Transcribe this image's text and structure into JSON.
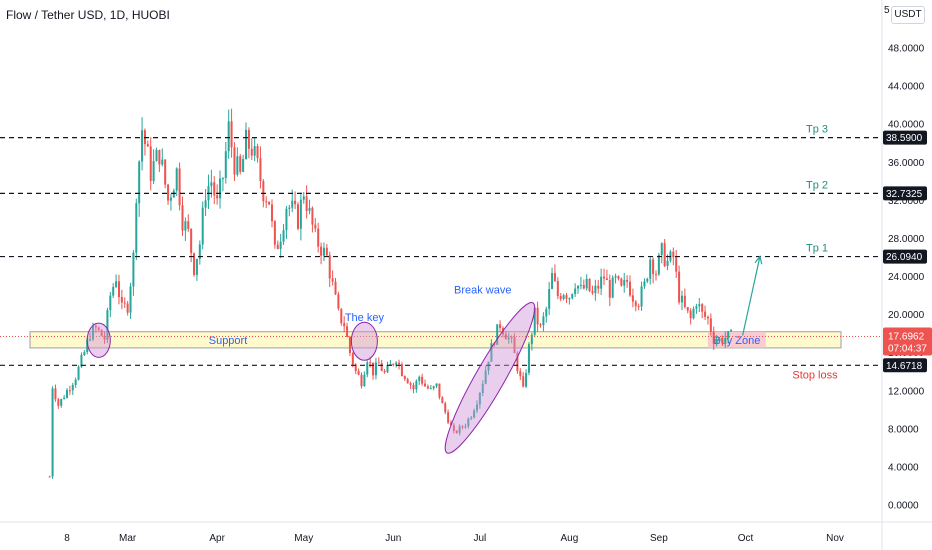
{
  "header": {
    "title": "Flow / Tether USD, 1D, HUOBI",
    "currency": "USDT",
    "top_axis_label": "5"
  },
  "colors": {
    "up": "#26a69a",
    "down": "#ef5350",
    "line": "#131722",
    "tp": "#1e8e7e",
    "stop": "#e53935",
    "blue_text": "#2962ff",
    "support_fill": "#fff9c4",
    "support_stroke": "#9e9e9e",
    "buy_zone": "#f8bbd0",
    "ellipse": "#ce93d8",
    "arrow": "#26a69a",
    "price_tag": "#ef5350"
  },
  "chart_data": {
    "type": "candlestick",
    "ylim": [
      -2,
      52
    ],
    "y_ticks": [
      "0.0000",
      "4.0000",
      "8.0000",
      "12.0000",
      "16.0000",
      "20.0000",
      "24.0000",
      "28.0000",
      "32.0000",
      "36.0000",
      "40.0000",
      "44.0000",
      "48.0000"
    ],
    "x_ticks": [
      {
        "label": "8",
        "day": 0
      },
      {
        "label": "Mar",
        "day": 21
      },
      {
        "label": "Apr",
        "day": 52
      },
      {
        "label": "May",
        "day": 82
      },
      {
        "label": "Jun",
        "day": 113
      },
      {
        "label": "Jul",
        "day": 143
      },
      {
        "label": "Aug",
        "day": 174
      },
      {
        "label": "Sep",
        "day": 205
      },
      {
        "label": "Oct",
        "day": 235
      },
      {
        "label": "Nov",
        "day": 266
      }
    ],
    "levels": [
      {
        "label": "Tp 3",
        "value": 38.59,
        "tag": "38.5900"
      },
      {
        "label": "Tp 2",
        "value": 32.7325,
        "tag": "32.7325"
      },
      {
        "label": "Tp 1",
        "value": 26.094,
        "tag": "26.0940"
      },
      {
        "label": "Stop loss",
        "value": 14.6718,
        "tag": "14.6718"
      }
    ],
    "current_price": {
      "value": 17.6962,
      "label": "17.6962",
      "countdown": "07:04:37"
    },
    "support": {
      "label": "Support",
      "low": 16.5,
      "high": 18.2,
      "day_start": -11,
      "day_end": 256
    },
    "buy_zone": {
      "label": "Buy Zone",
      "low": 16.5,
      "high": 18.2,
      "day_start": 222,
      "day_end": 242
    },
    "annotations": [
      {
        "label": "The key",
        "day": 103,
        "value": 19.3
      },
      {
        "label": "Break wave",
        "day": 144,
        "value": 22.2
      }
    ],
    "arrow": {
      "from_day": 234,
      "from_value": 17.8,
      "to_day": 240,
      "to_value": 26.1
    },
    "circles": [
      {
        "day": 11,
        "value": 17.3,
        "rx_days": 4,
        "ry_value": 1.8
      },
      {
        "day": 103,
        "value": 17.2,
        "rx_days": 4.5,
        "ry_value": 2.0
      }
    ],
    "ellipse": {
      "from_day": 133,
      "from_value": 6.2,
      "to_day": 160,
      "to_value": 20.5,
      "half_width_days": 5
    },
    "ohlc_path": [
      {
        "day": -6,
        "value": 3.0
      },
      {
        "day": -5,
        "value": 12.5
      },
      {
        "day": -3,
        "value": 10.5
      },
      {
        "day": 0,
        "value": 12.0
      },
      {
        "day": 3,
        "value": 13.5
      },
      {
        "day": 6,
        "value": 16.0
      },
      {
        "day": 8,
        "value": 18.0
      },
      {
        "day": 10,
        "value": 18.5
      },
      {
        "day": 13,
        "value": 17.5
      },
      {
        "day": 15,
        "value": 22.0
      },
      {
        "day": 17,
        "value": 24.0
      },
      {
        "day": 19,
        "value": 20.5
      },
      {
        "day": 21,
        "value": 21.0
      },
      {
        "day": 23,
        "value": 26.0
      },
      {
        "day": 24,
        "value": 33.0
      },
      {
        "day": 26,
        "value": 39.5
      },
      {
        "day": 29,
        "value": 35.0
      },
      {
        "day": 32,
        "value": 37.0
      },
      {
        "day": 35,
        "value": 32.0
      },
      {
        "day": 38,
        "value": 35.0
      },
      {
        "day": 40,
        "value": 30.0
      },
      {
        "day": 42,
        "value": 28.5
      },
      {
        "day": 44,
        "value": 25.0
      },
      {
        "day": 46,
        "value": 27.5
      },
      {
        "day": 48,
        "value": 33.0
      },
      {
        "day": 50,
        "value": 34.0
      },
      {
        "day": 52,
        "value": 31.5
      },
      {
        "day": 54,
        "value": 34.5
      },
      {
        "day": 56,
        "value": 39.5
      },
      {
        "day": 58,
        "value": 36.0
      },
      {
        "day": 60,
        "value": 34.5
      },
      {
        "day": 62,
        "value": 38.0
      },
      {
        "day": 64,
        "value": 37.5
      },
      {
        "day": 66,
        "value": 35.5
      },
      {
        "day": 68,
        "value": 33.0
      },
      {
        "day": 70,
        "value": 32.0
      },
      {
        "day": 72,
        "value": 26.5
      },
      {
        "day": 74,
        "value": 28.5
      },
      {
        "day": 76,
        "value": 31.5
      },
      {
        "day": 78,
        "value": 31.0
      },
      {
        "day": 80,
        "value": 30.0
      },
      {
        "day": 82,
        "value": 33.0
      },
      {
        "day": 84,
        "value": 30.5
      },
      {
        "day": 86,
        "value": 28.0
      },
      {
        "day": 88,
        "value": 27.0
      },
      {
        "day": 90,
        "value": 26.0
      },
      {
        "day": 92,
        "value": 23.0
      },
      {
        "day": 94,
        "value": 20.0
      },
      {
        "day": 96,
        "value": 19.0
      },
      {
        "day": 98,
        "value": 16.0
      },
      {
        "day": 100,
        "value": 14.0
      },
      {
        "day": 102,
        "value": 13.0
      },
      {
        "day": 104,
        "value": 15.5
      },
      {
        "day": 106,
        "value": 14.0
      },
      {
        "day": 108,
        "value": 14.8
      },
      {
        "day": 110,
        "value": 13.8
      },
      {
        "day": 112,
        "value": 14.6
      },
      {
        "day": 114,
        "value": 15.5
      },
      {
        "day": 116,
        "value": 14.0
      },
      {
        "day": 118,
        "value": 13.2
      },
      {
        "day": 120,
        "value": 12.2
      },
      {
        "day": 122,
        "value": 13.5
      },
      {
        "day": 124,
        "value": 12.5
      },
      {
        "day": 126,
        "value": 12.0
      },
      {
        "day": 128,
        "value": 12.5
      },
      {
        "day": 130,
        "value": 10.5
      },
      {
        "day": 132,
        "value": 9.0
      },
      {
        "day": 134,
        "value": 7.5
      },
      {
        "day": 136,
        "value": 8.0
      },
      {
        "day": 138,
        "value": 8.5
      },
      {
        "day": 140,
        "value": 9.5
      },
      {
        "day": 142,
        "value": 11.0
      },
      {
        "day": 144,
        "value": 13.0
      },
      {
        "day": 146,
        "value": 15.5
      },
      {
        "day": 148,
        "value": 17.5
      },
      {
        "day": 150,
        "value": 19.0
      },
      {
        "day": 152,
        "value": 18.0
      },
      {
        "day": 154,
        "value": 17.0
      },
      {
        "day": 156,
        "value": 14.5
      },
      {
        "day": 158,
        "value": 12.0
      },
      {
        "day": 160,
        "value": 16.5
      },
      {
        "day": 162,
        "value": 20.0
      },
      {
        "day": 164,
        "value": 18.5
      },
      {
        "day": 166,
        "value": 20.5
      },
      {
        "day": 168,
        "value": 24.0
      },
      {
        "day": 170,
        "value": 22.0
      },
      {
        "day": 172,
        "value": 22.5
      },
      {
        "day": 174,
        "value": 22.0
      },
      {
        "day": 176,
        "value": 23.5
      },
      {
        "day": 178,
        "value": 22.5
      },
      {
        "day": 180,
        "value": 23.0
      },
      {
        "day": 182,
        "value": 22.0
      },
      {
        "day": 184,
        "value": 23.0
      },
      {
        "day": 186,
        "value": 24.0
      },
      {
        "day": 188,
        "value": 22.5
      },
      {
        "day": 190,
        "value": 23.5
      },
      {
        "day": 192,
        "value": 22.5
      },
      {
        "day": 194,
        "value": 23.5
      },
      {
        "day": 196,
        "value": 22.0
      },
      {
        "day": 198,
        "value": 21.5
      },
      {
        "day": 200,
        "value": 23.0
      },
      {
        "day": 202,
        "value": 26.0
      },
      {
        "day": 204,
        "value": 24.5
      },
      {
        "day": 206,
        "value": 26.5
      },
      {
        "day": 208,
        "value": 25.5
      },
      {
        "day": 210,
        "value": 26.0
      },
      {
        "day": 212,
        "value": 22.0
      },
      {
        "day": 214,
        "value": 20.5
      },
      {
        "day": 216,
        "value": 19.5
      },
      {
        "day": 218,
        "value": 21.5
      },
      {
        "day": 220,
        "value": 20.0
      },
      {
        "day": 222,
        "value": 19.5
      },
      {
        "day": 224,
        "value": 17.5
      },
      {
        "day": 226,
        "value": 17.3
      },
      {
        "day": 228,
        "value": 17.6
      },
      {
        "day": 230,
        "value": 17.7
      }
    ]
  }
}
